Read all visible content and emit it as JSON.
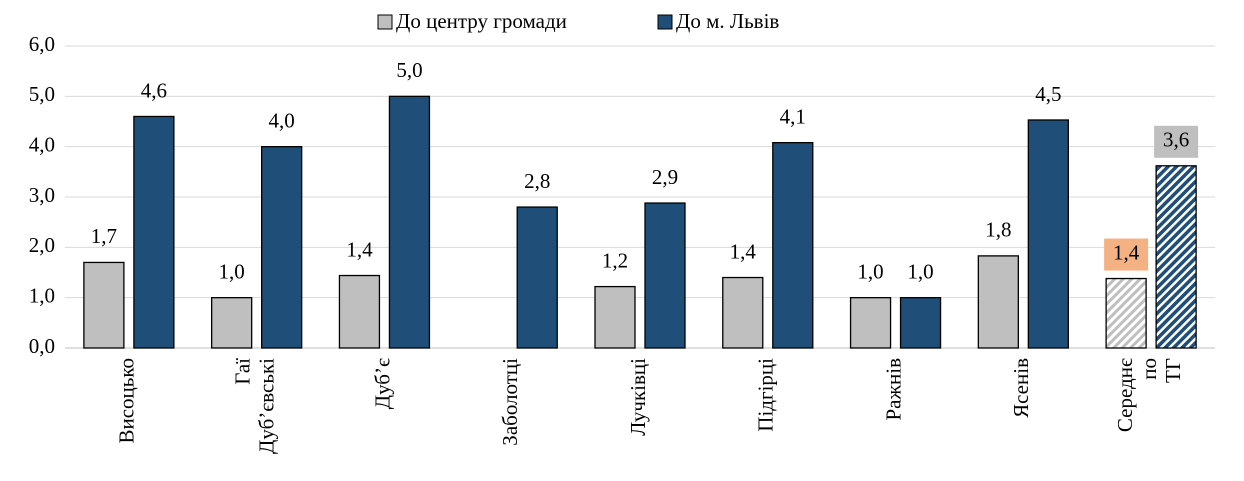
{
  "chart_data": {
    "type": "bar",
    "categories": [
      "Висоцько",
      "Гаї Дуб’євські",
      "Дуб’є",
      "Заболотці",
      "Лучківці",
      "Підгірці",
      "Ражнів",
      "Ясенів",
      "Середнє по ТГ"
    ],
    "series": [
      {
        "name": "До центру громади",
        "color": "#bfbfbf",
        "values": [
          1.7,
          1.0,
          1.44,
          null,
          1.22,
          1.4,
          1.0,
          1.83,
          1.38
        ],
        "value_labels": [
          "1,7",
          "1,0",
          "1,4",
          null,
          "1,2",
          "1,4",
          "1,0",
          "1,8",
          "1,4"
        ],
        "hatch": [
          false,
          false,
          false,
          false,
          false,
          false,
          false,
          false,
          true
        ],
        "label_box_colors": [
          null,
          null,
          null,
          null,
          null,
          null,
          null,
          null,
          "#f4b183"
        ]
      },
      {
        "name": "До м. Львів",
        "color": "#1f4e79",
        "values": [
          4.6,
          4.0,
          5.0,
          2.8,
          2.88,
          4.08,
          1.0,
          4.53,
          3.62
        ],
        "value_labels": [
          "4,6",
          "4,0",
          "5,0",
          "2,8",
          "2,9",
          "4,1",
          "1,0",
          "4,5",
          "3,6"
        ],
        "hatch": [
          false,
          false,
          false,
          false,
          false,
          false,
          false,
          false,
          true
        ],
        "label_box_colors": [
          null,
          null,
          null,
          null,
          null,
          null,
          null,
          null,
          "#bfbfbf"
        ]
      }
    ],
    "ylim": [
      0,
      6
    ],
    "yticks": [
      {
        "value": 0,
        "label": "0,0"
      },
      {
        "value": 1,
        "label": "1,0"
      },
      {
        "value": 2,
        "label": "2,0"
      },
      {
        "value": 3,
        "label": "3,0"
      },
      {
        "value": 4,
        "label": "4,0"
      },
      {
        "value": 5,
        "label": "5,0"
      },
      {
        "value": 6,
        "label": "6,0"
      }
    ],
    "grid": true,
    "legend": "top"
  }
}
